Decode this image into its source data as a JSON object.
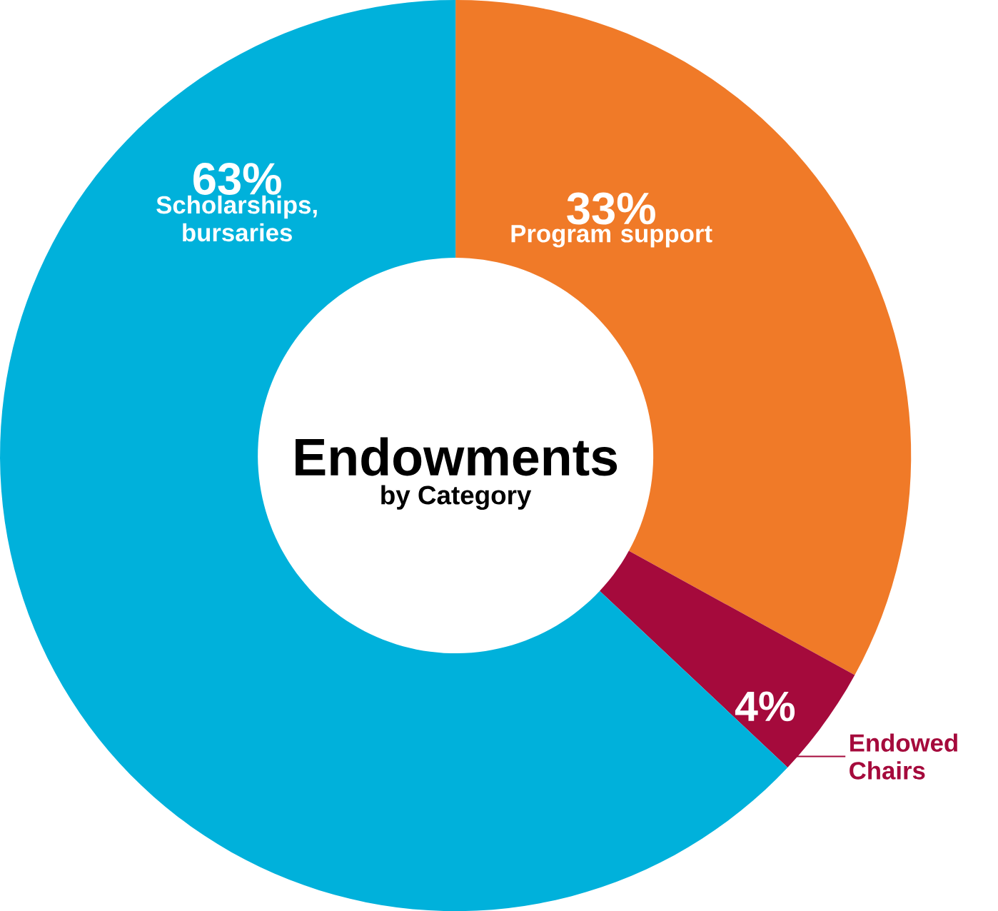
{
  "chart_data": {
    "type": "donut",
    "title": "Endowments",
    "subtitle": "by Category",
    "categories": [
      "Program support",
      "Endowed Chairs",
      "Scholarships, bursaries"
    ],
    "values": [
      33,
      4,
      63
    ],
    "colors": [
      "#f07a28",
      "#a50a3c",
      "#00b1db"
    ],
    "value_labels": [
      "33%",
      "4%",
      "63%"
    ]
  }
}
